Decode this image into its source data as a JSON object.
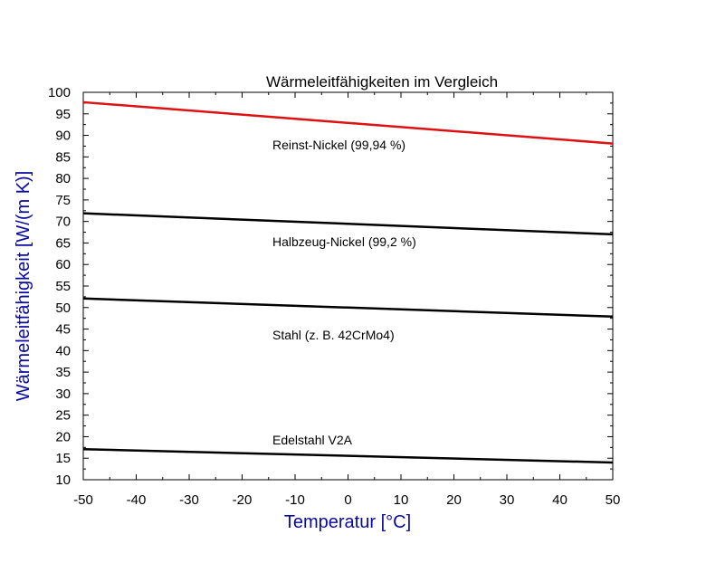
{
  "chart_data": {
    "type": "line",
    "title": "Wärmeleitfähigkeiten im Vergleich",
    "xlabel": "Temperatur [°C]",
    "ylabel": "Wärmeleitfähigkeit  [W/(m K)]",
    "xlim": [
      -50,
      50
    ],
    "ylim": [
      10,
      100
    ],
    "x_ticks": [
      -50,
      -40,
      -30,
      -20,
      -10,
      0,
      10,
      20,
      30,
      40,
      50
    ],
    "y_ticks": [
      10,
      15,
      20,
      25,
      30,
      35,
      40,
      45,
      50,
      55,
      60,
      65,
      70,
      75,
      80,
      85,
      90,
      95,
      100
    ],
    "grid": false,
    "axis_label_color": "#0a0aa0",
    "series": [
      {
        "name": "Reinst-Nickel (99,94 %)",
        "color": "#dd1111",
        "x": [
          -50,
          50
        ],
        "y": [
          97.7,
          88.1
        ]
      },
      {
        "name": "Halbzeug-Nickel (99,2 %)",
        "color": "#000000",
        "x": [
          -50,
          50
        ],
        "y": [
          71.9,
          67.0
        ]
      },
      {
        "name": "Stahl (z. B. 42CrMo4)",
        "color": "#000000",
        "x": [
          -50,
          50
        ],
        "y": [
          52.1,
          47.9
        ]
      },
      {
        "name": "Edelstahl V2A",
        "color": "#000000",
        "x": [
          -50,
          50
        ],
        "y": [
          17.1,
          14.0
        ]
      }
    ]
  }
}
